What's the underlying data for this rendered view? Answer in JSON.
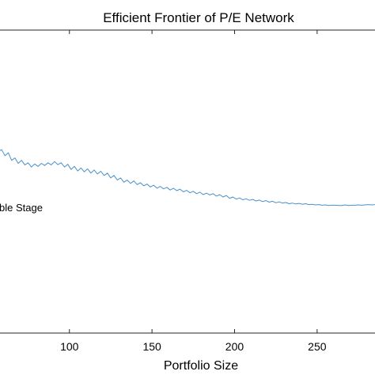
{
  "chart_data": {
    "type": "line",
    "title": "Efficient Frontier of P/E Network",
    "xlabel": "Portfolio Size",
    "ylabel": "",
    "xlim": [
      57,
      286
    ],
    "ylim": [
      0,
      1
    ],
    "x_ticks": [
      100,
      150,
      200,
      250
    ],
    "x_tick_labels": [
      "100",
      "150",
      "200",
      "250"
    ],
    "grid": false,
    "annotation": "ble Stage",
    "annotation_position": [
      57,
      0.415
    ],
    "series": [
      {
        "color": "#4a90c8",
        "x": [
          57,
          59,
          61,
          63,
          65,
          67,
          69,
          71,
          73,
          75,
          77,
          79,
          81,
          83,
          85,
          87,
          89,
          91,
          93,
          95,
          97,
          99,
          101,
          103,
          105,
          107,
          109,
          111,
          113,
          115,
          117,
          119,
          121,
          123,
          125,
          127,
          129,
          131,
          133,
          135,
          137,
          139,
          141,
          143,
          145,
          147,
          149,
          151,
          153,
          155,
          157,
          159,
          161,
          163,
          165,
          167,
          169,
          171,
          173,
          175,
          177,
          179,
          181,
          183,
          185,
          187,
          189,
          191,
          193,
          195,
          197,
          199,
          201,
          203,
          205,
          207,
          209,
          211,
          213,
          215,
          217,
          219,
          221,
          223,
          225,
          227,
          229,
          231,
          233,
          235,
          237,
          239,
          241,
          243,
          245,
          247,
          249,
          251,
          253,
          255,
          257,
          259,
          261,
          263,
          265,
          267,
          269,
          271,
          273,
          275,
          277,
          279,
          281,
          283,
          285
        ],
        "values": [
          0.6,
          0.605,
          0.585,
          0.595,
          0.57,
          0.578,
          0.56,
          0.57,
          0.555,
          0.562,
          0.548,
          0.558,
          0.55,
          0.56,
          0.553,
          0.562,
          0.555,
          0.566,
          0.556,
          0.562,
          0.548,
          0.557,
          0.54,
          0.55,
          0.535,
          0.545,
          0.532,
          0.542,
          0.528,
          0.538,
          0.525,
          0.534,
          0.52,
          0.528,
          0.512,
          0.52,
          0.505,
          0.512,
          0.498,
          0.505,
          0.494,
          0.502,
          0.49,
          0.496,
          0.486,
          0.492,
          0.482,
          0.488,
          0.478,
          0.484,
          0.476,
          0.481,
          0.472,
          0.478,
          0.47,
          0.475,
          0.466,
          0.471,
          0.463,
          0.468,
          0.46,
          0.465,
          0.457,
          0.462,
          0.456,
          0.46,
          0.452,
          0.457,
          0.449,
          0.454,
          0.445,
          0.449,
          0.442,
          0.446,
          0.44,
          0.443,
          0.438,
          0.441,
          0.436,
          0.439,
          0.434,
          0.437,
          0.432,
          0.435,
          0.43,
          0.433,
          0.429,
          0.431,
          0.427,
          0.429,
          0.426,
          0.428,
          0.425,
          0.427,
          0.424,
          0.425,
          0.423,
          0.424,
          0.422,
          0.423,
          0.421,
          0.422,
          0.422,
          0.421,
          0.421,
          0.423,
          0.421,
          0.422,
          0.422,
          0.423,
          0.422,
          0.423,
          0.424,
          0.423,
          0.424
        ]
      }
    ]
  }
}
